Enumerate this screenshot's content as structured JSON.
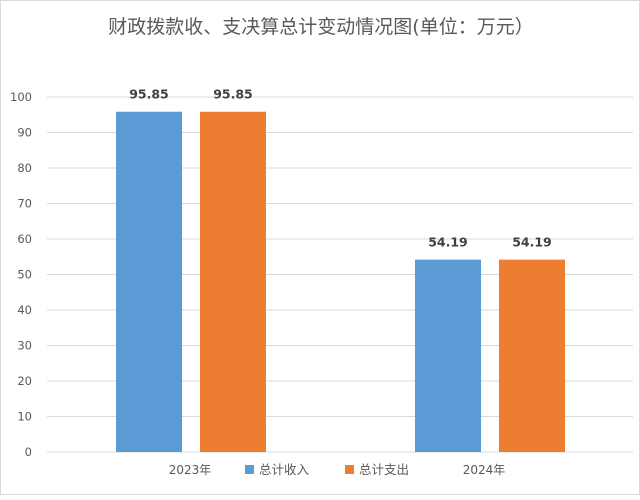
{
  "chart_data": {
    "type": "bar",
    "title": "财政拨款收、支决算总计变动情况图(单位：万元）",
    "xlabel": "",
    "ylabel": "",
    "categories": [
      "2023年",
      "2024年"
    ],
    "series": [
      {
        "name": "总计收入",
        "values": [
          95.85,
          54.19
        ],
        "color": "#5b9bd5"
      },
      {
        "name": "总计支出",
        "values": [
          95.85,
          54.19
        ],
        "color": "#ed7d31"
      }
    ],
    "ylim": [
      0,
      100
    ],
    "yticks": [
      0,
      10,
      20,
      30,
      40,
      50,
      60,
      70,
      80,
      90,
      100
    ],
    "grid": true,
    "legend_position": "bottom",
    "data_labels": true
  },
  "colors": {
    "gridline": "#d9d9d9",
    "axis_text": "#595959",
    "title_text": "#595959",
    "label_text": "#404040"
  }
}
